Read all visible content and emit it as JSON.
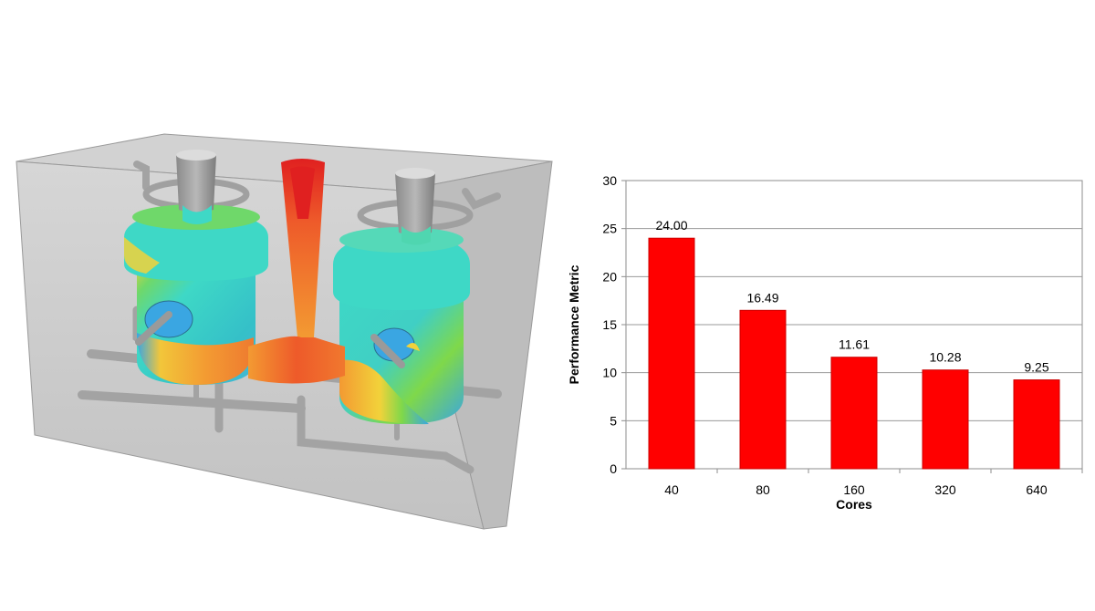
{
  "chart_data": {
    "type": "bar",
    "categories": [
      "40",
      "80",
      "160",
      "320",
      "640"
    ],
    "values": [
      24.0,
      16.49,
      11.61,
      10.28,
      9.25
    ],
    "value_labels": [
      "24.00",
      "16.49",
      "11.61",
      "10.28",
      "9.25"
    ],
    "title": "",
    "xlabel": "Cores",
    "ylabel": "Performance Metric",
    "ylim": [
      0,
      30
    ],
    "yticks": [
      0,
      5,
      10,
      15,
      20,
      25,
      30
    ],
    "grid": true,
    "legend": "none",
    "bar_color": "#ff0000",
    "bar_stroke": "#cc0000"
  },
  "render": {
    "colors": {
      "mold_face": "#c9c9c9",
      "mold_edge": "#8f8f8f",
      "pipe": "#a7a7a7",
      "cyan": "#3ed8c6",
      "teal": "#35c0c8",
      "green": "#7fd84a",
      "yellow": "#f2d23a",
      "orange": "#f39a32",
      "red_orange": "#ee5a2a",
      "red": "#e02020",
      "blue": "#3aa6e2"
    }
  }
}
